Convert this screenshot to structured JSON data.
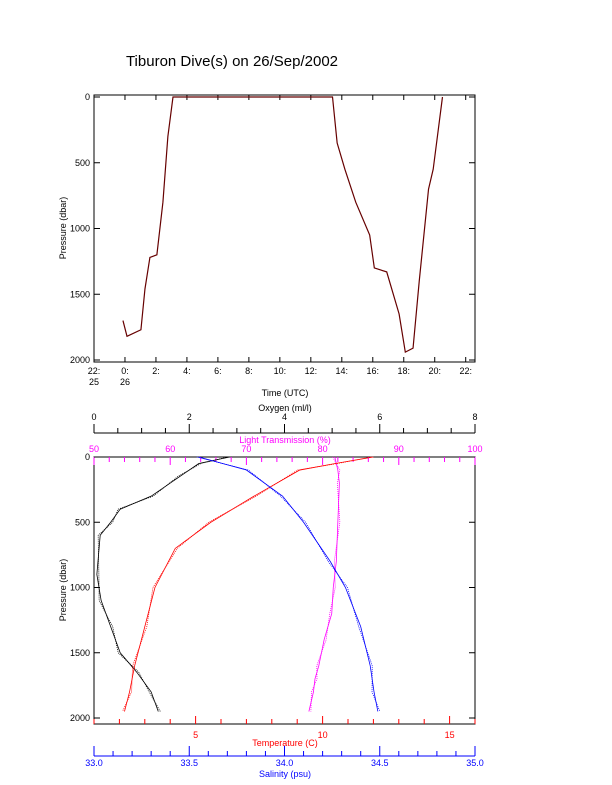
{
  "title": "Tiburon Dive(s) on 26/Sep/2002",
  "colors": {
    "oxygen": "#000000",
    "temperature": "#ff0000",
    "salinity": "#0000ff",
    "transmission": "#ff00ff",
    "axis": "#000000"
  },
  "chart_data": [
    {
      "type": "line",
      "name": "time-pressure",
      "xlabel": "Time (UTC)",
      "ylabel": "Pressure (dbar)",
      "xlim_hours": [
        -2,
        22.6
      ],
      "ylim": [
        2000,
        0
      ],
      "xticks": [
        {
          "h": -2,
          "label": "22:",
          "sub": "25"
        },
        {
          "h": 0,
          "label": "0:",
          "sub": "26"
        },
        {
          "h": 2,
          "label": "2:"
        },
        {
          "h": 4,
          "label": "4:"
        },
        {
          "h": 6,
          "label": "6:"
        },
        {
          "h": 8,
          "label": "8:"
        },
        {
          "h": 10,
          "label": "10:"
        },
        {
          "h": 12,
          "label": "12:"
        },
        {
          "h": 14,
          "label": "14:"
        },
        {
          "h": 16,
          "label": "16:"
        },
        {
          "h": 18,
          "label": "18:"
        },
        {
          "h": 20,
          "label": "20:"
        },
        {
          "h": 22,
          "label": "22:"
        }
      ],
      "yticks": [
        0,
        500,
        1000,
        1500,
        2000
      ],
      "series": [
        {
          "name": "Pressure",
          "x": [
            -0.13,
            0.13,
            1.03,
            1.29,
            1.61,
            2.06,
            2.45,
            2.77,
            3.1,
            13.4,
            13.7,
            14.2,
            14.9,
            15.8,
            16.1,
            16.9,
            17.7,
            18.1,
            18.6,
            19.0,
            19.6,
            19.9,
            20.5
          ],
          "y": [
            1700,
            1820,
            1770,
            1460,
            1220,
            1200,
            800,
            300,
            0,
            0,
            350,
            550,
            800,
            1050,
            1300,
            1330,
            1650,
            1940,
            1910,
            1400,
            700,
            550,
            0
          ]
        }
      ]
    },
    {
      "type": "line",
      "name": "profiles",
      "ylabel": "Pressure (dbar)",
      "ylim": [
        2000,
        0
      ],
      "yticks": [
        0,
        500,
        1000,
        1500,
        2000
      ],
      "axes": [
        {
          "label": "Oxygen (ml/l)",
          "position": "top",
          "range": [
            0,
            8
          ],
          "ticks": [
            0,
            2,
            4,
            6,
            8
          ],
          "color": "#000000"
        },
        {
          "label": "Light Transmission (%)",
          "position": "top-inner",
          "range": [
            50,
            100
          ],
          "ticks": [
            50,
            60,
            70,
            80,
            90,
            100
          ],
          "color": "#ff00ff"
        },
        {
          "label": "Temperature (C)",
          "position": "bottom",
          "range": [
            1,
            16
          ],
          "ticks": [
            5,
            10,
            15
          ],
          "color": "#ff0000"
        },
        {
          "label": "Salinity (psu)",
          "position": "bottom-outer",
          "range": [
            33,
            35
          ],
          "ticks": [
            "33.0",
            "33.5",
            "34.0",
            "34.5",
            "35.0"
          ],
          "color": "#0000ff"
        }
      ],
      "series": [
        {
          "name": "Oxygen",
          "axis": 0,
          "p": [
            0,
            50,
            150,
            300,
            400,
            500,
            600,
            900,
            1100,
            1300,
            1500,
            1650,
            1800,
            1950
          ],
          "v": [
            2.85,
            2.2,
            1.8,
            1.2,
            0.55,
            0.35,
            0.13,
            0.06,
            0.15,
            0.35,
            0.55,
            0.9,
            1.2,
            1.35
          ]
        },
        {
          "name": "Light Transmission",
          "axis": 1,
          "p": [
            0,
            100,
            200,
            500,
            800,
            1000,
            1200,
            1400,
            1600,
            1700,
            1800,
            1950
          ],
          "v": [
            81.6,
            82,
            82.2,
            82,
            81.8,
            81.4,
            81.2,
            80.2,
            79.5,
            79,
            78.8,
            78.2
          ]
        },
        {
          "name": "Temperature",
          "axis": 2,
          "p": [
            0,
            50,
            100,
            300,
            500,
            700,
            1000,
            1300,
            1600,
            1800,
            1950
          ],
          "v": [
            12,
            10.5,
            9.1,
            7.3,
            5.6,
            4.2,
            3.4,
            3.0,
            2.6,
            2.4,
            2.2
          ]
        },
        {
          "name": "Salinity",
          "axis": 3,
          "p": [
            0,
            100,
            300,
            500,
            800,
            1000,
            1300,
            1600,
            1800,
            1950
          ],
          "v": [
            33.55,
            33.8,
            33.99,
            34.1,
            34.24,
            34.32,
            34.4,
            34.45,
            34.47,
            34.49
          ]
        }
      ]
    }
  ]
}
